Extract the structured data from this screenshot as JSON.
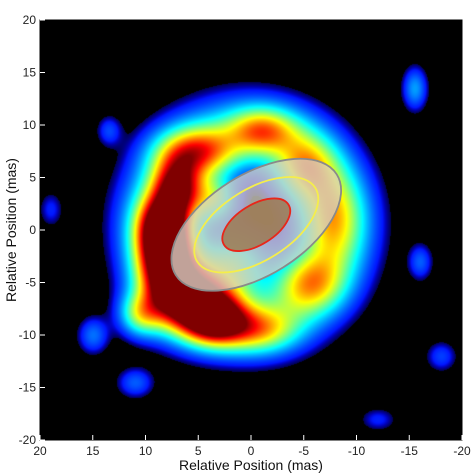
{
  "chart_data": {
    "type": "heatmap",
    "title": "",
    "xlabel": "Relative Position (mas)",
    "ylabel": "Relative Position (mas)",
    "xlim": [
      20,
      -20
    ],
    "ylim": [
      -20,
      20
    ],
    "x_ticks": [
      20,
      15,
      10,
      5,
      0,
      -5,
      -10,
      -15,
      -20
    ],
    "y_ticks": [
      20,
      15,
      10,
      5,
      0,
      -5,
      -10,
      -15,
      -20
    ],
    "colormap": "jet",
    "background_color": "#000000",
    "emission_blobs": [
      {
        "x": 8.0,
        "y": -2.5,
        "sx": 1.8,
        "sy": 2.6,
        "amp": 1.0
      },
      {
        "x": 6.0,
        "y": -6.5,
        "sx": 2.6,
        "sy": 2.2,
        "amp": 0.92
      },
      {
        "x": 3.5,
        "y": -8.5,
        "sx": 2.0,
        "sy": 1.6,
        "amp": 0.8
      },
      {
        "x": 7.0,
        "y": 4.0,
        "sx": 1.6,
        "sy": 2.0,
        "amp": 0.78
      },
      {
        "x": 8.5,
        "y": 0.5,
        "sx": 1.6,
        "sy": 2.0,
        "amp": 0.7
      },
      {
        "x": 5.0,
        "y": 7.5,
        "sx": 2.6,
        "sy": 1.6,
        "amp": 0.55
      },
      {
        "x": -1.0,
        "y": 9.5,
        "sx": 2.2,
        "sy": 1.5,
        "amp": 0.48
      },
      {
        "x": -5.0,
        "y": 6.0,
        "sx": 2.0,
        "sy": 2.2,
        "amp": 0.42
      },
      {
        "x": -7.5,
        "y": 1.0,
        "sx": 2.0,
        "sy": 3.0,
        "amp": 0.4
      },
      {
        "x": -5.5,
        "y": -5.0,
        "sx": 2.2,
        "sy": 2.0,
        "amp": 0.42
      },
      {
        "x": -0.5,
        "y": -9.5,
        "sx": 2.6,
        "sy": 1.5,
        "amp": 0.45
      },
      {
        "x": 1.5,
        "y": -3.0,
        "sx": 2.2,
        "sy": 2.2,
        "amp": 0.35
      },
      {
        "x": 10.5,
        "y": -8.0,
        "sx": 1.4,
        "sy": 1.4,
        "amp": 0.4
      },
      {
        "x": 3.5,
        "y": 3.0,
        "sx": 1.5,
        "sy": 1.5,
        "amp": 0.4
      },
      {
        "x": -15.5,
        "y": 13.5,
        "sx": 0.8,
        "sy": 1.4,
        "amp": 0.25
      },
      {
        "x": -16.0,
        "y": -3.0,
        "sx": 0.8,
        "sy": 1.2,
        "amp": 0.18
      },
      {
        "x": 15.0,
        "y": -10.0,
        "sx": 1.0,
        "sy": 1.2,
        "amp": 0.2
      },
      {
        "x": 11.0,
        "y": -14.5,
        "sx": 1.2,
        "sy": 1.0,
        "amp": 0.18
      },
      {
        "x": 13.5,
        "y": 9.5,
        "sx": 0.8,
        "sy": 1.0,
        "amp": 0.15
      },
      {
        "x": -18.0,
        "y": -12.0,
        "sx": 1.0,
        "sy": 1.0,
        "amp": 0.15
      },
      {
        "x": 19.0,
        "y": 2.0,
        "sx": 0.8,
        "sy": 1.2,
        "amp": 0.12
      },
      {
        "x": -12.0,
        "y": -18.0,
        "sx": 1.2,
        "sy": 0.8,
        "amp": 0.12
      }
    ],
    "ring": {
      "x": 0.5,
      "y": 0.5,
      "r": 8.8,
      "width": 2.6,
      "amp": 0.32
    },
    "overlay_ellipses": [
      {
        "name": "outer-ellipse",
        "x": -0.5,
        "y": 0.5,
        "rx": 9.0,
        "ry": 4.8,
        "angle_deg": 32,
        "fill": "#d4cfc4",
        "fill_opacity": 0.78,
        "stroke": "#8a8a8a"
      },
      {
        "name": "middle-ellipse",
        "x": -0.5,
        "y": 0.5,
        "rx": 6.6,
        "ry": 3.4,
        "angle_deg": 32,
        "fill": "none",
        "stroke": "#f5ee4a"
      },
      {
        "name": "inner-ellipse",
        "x": -0.5,
        "y": 0.5,
        "rx": 3.6,
        "ry": 1.9,
        "angle_deg": 32,
        "fill": "#9c7a52",
        "fill_opacity": 0.85,
        "stroke": "#e8261a"
      }
    ]
  }
}
